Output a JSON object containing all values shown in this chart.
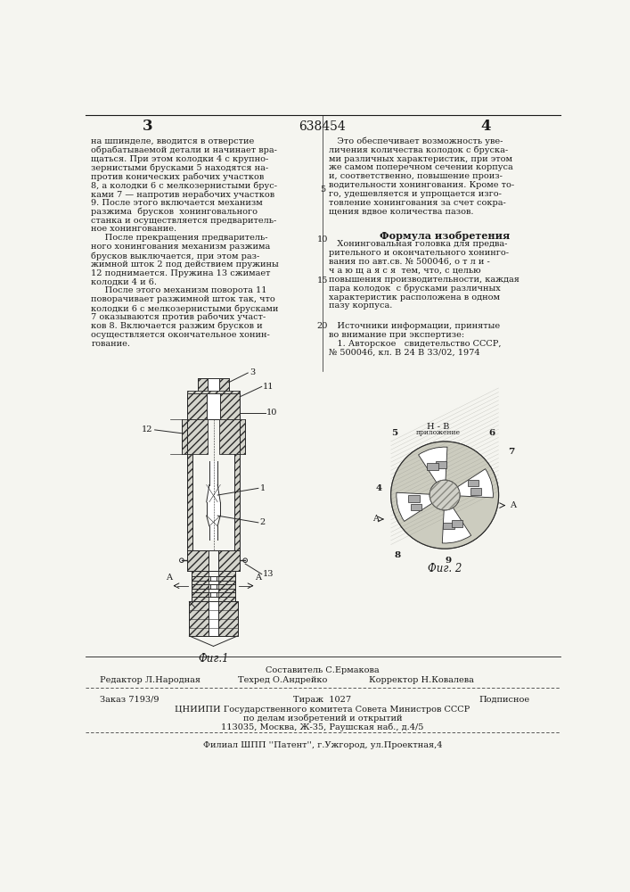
{
  "bg_color": "#f5f5f0",
  "text_color": "#1a1a1a",
  "page_number_left": "3",
  "patent_number": "638454",
  "page_number_right": "4",
  "col_left_lines": [
    "на шпинделе, вводится в отверстие",
    "обрабатываемой детали и начинает вра-",
    "щаться. При этом колодки 4 с крупно-",
    "зернистыми брусками 5 находятся на-",
    "против конических рабочих участков",
    "8, а колодки 6 с мелкозернистыми брус-",
    "ками 7 — напротив нерабочих участков",
    "9. После этого включается механизм",
    "разжима  брусков  хонинговального",
    "станка и осуществляется предваритель-",
    "ное хонингование.",
    "     После прекращения предваритель-",
    "ного хонингования механизм разжима",
    "брусков выключается, при этом раз-",
    "жимной шток 2 под действием пружины",
    "12 поднимается. Пружина 13 сжимает",
    "колодки 4 и 6.",
    "     После этого механизм поворота 11",
    "поворачивает разжимной шток так, что",
    "колодки 6 с мелкозернистыми брусками",
    "7 оказываются против рабочих участ-",
    "ков 8. Включается разжим брусков и",
    "осуществляется окончательное хонин-",
    "гование."
  ],
  "margin_numbers": [
    [
      5,
      "5"
    ],
    [
      10,
      "10"
    ],
    [
      15,
      "15"
    ],
    [
      20,
      "20"
    ]
  ],
  "col_right_lines": [
    "   Это обеспечивает возможность уве-",
    "личения количества колодок с бруска-",
    "ми различных характеристик, при этом",
    "же самом поперечном сечении корпуса",
    "и, соответственно, повышение произ-",
    "водительности хонингования. Кроме то-",
    "го, удешевляется и упрощается изго-",
    "товление хонингования за счет сокра-",
    "щения вдвое количества пазов."
  ],
  "formula_title": "Формула изобретения",
  "formula_lines": [
    "   Хонинговальная головка для предва-",
    "рительного и окончательного хонинго-",
    "вания по авт.св. № 500046, о т л и -",
    "ч а ю щ а я с я  тем, что, с целью",
    "повышения производительности, каждая",
    "пара колодок  с брусками различных",
    "характеристик расположена в одном",
    "пазу корпуса."
  ],
  "sources_title": "   Источники информации, принятые",
  "sources_subtitle": "во внимание при экспертизе:",
  "source_1": "   1. Авторское   свидетельство СССР,",
  "source_1b": "№ 500046, кл. В 24 В 33/02, 1974",
  "fig1_caption": "Фиг.1",
  "fig2_caption": "Фиг. 2",
  "footer_composer": "Составитель С.Ермакова",
  "footer_editor": "Редактор Л.Народная",
  "footer_techred": "Техред О.Андрейко",
  "footer_corrector": "Корректор Н.Ковалева",
  "footer_order": "Заказ 7193/9",
  "footer_circulation": "Тираж  1027",
  "footer_subscription": "Подписное",
  "footer_org": "ЦНИИПИ Государственного комитета Совета Министров СССР",
  "footer_dept": "по делам изобретений и открытий",
  "footer_address": "113035, Москва, Ж-35, Раушская наб., д.4/5",
  "footer_branch": "Филиал ШПП ''Патент'', г.Ужгород, ул.Проектная,4"
}
